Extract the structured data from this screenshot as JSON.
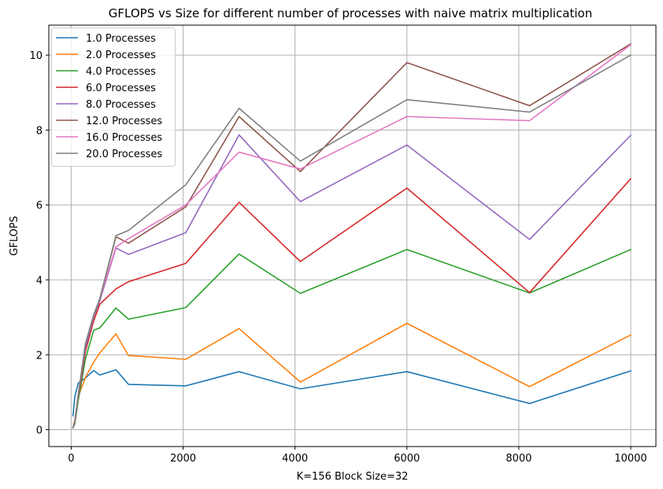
{
  "chart_data": {
    "type": "line",
    "title": "GFLOPS vs Size for different number of processes with naive matrix multiplication",
    "xlabel": "K=156 Block Size=32",
    "ylabel": "GFLOPS",
    "xlim": [
      -400,
      10450
    ],
    "ylim": [
      -0.45,
      10.8
    ],
    "xticks": [
      0,
      2000,
      4000,
      6000,
      8000,
      10000
    ],
    "yticks": [
      0,
      2,
      4,
      6,
      8,
      10
    ],
    "grid": true,
    "legend_position": "top-left",
    "x": [
      32,
      64,
      128,
      256,
      400,
      512,
      800,
      1024,
      2048,
      3000,
      4096,
      6000,
      8192,
      10000
    ],
    "series": [
      {
        "name": "1.0 Processes",
        "color": "#1f77b4",
        "values": [
          0.37,
          0.88,
          1.25,
          1.38,
          1.58,
          1.46,
          1.6,
          1.21,
          1.17,
          1.55,
          1.09,
          1.55,
          0.7,
          1.57
        ]
      },
      {
        "name": "2.0 Processes",
        "color": "#ff7f0e",
        "values": [
          0.05,
          0.25,
          0.9,
          1.4,
          1.8,
          2.05,
          2.56,
          1.98,
          1.88,
          2.7,
          1.27,
          2.84,
          1.15,
          2.53
        ]
      },
      {
        "name": "4.0 Processes",
        "color": "#2ca02c",
        "values": [
          0.05,
          0.15,
          0.8,
          1.9,
          2.65,
          2.72,
          3.25,
          2.95,
          3.26,
          4.69,
          3.64,
          4.81,
          3.65,
          4.81
        ]
      },
      {
        "name": "6.0 Processes",
        "color": "#d62728",
        "values": [
          0.05,
          0.2,
          0.9,
          2.1,
          2.9,
          3.35,
          3.76,
          3.95,
          4.44,
          6.07,
          4.49,
          6.45,
          3.66,
          6.7
        ]
      },
      {
        "name": "8.0 Processes",
        "color": "#9467bd",
        "values": [
          0.05,
          0.2,
          0.95,
          2.2,
          3.0,
          3.45,
          4.85,
          4.68,
          5.26,
          7.87,
          6.09,
          7.6,
          5.08,
          7.86
        ]
      },
      {
        "name": "12.0 Processes",
        "color": "#8c564b",
        "values": [
          0.05,
          0.2,
          0.95,
          2.3,
          3.05,
          3.5,
          5.15,
          4.98,
          5.95,
          8.36,
          6.89,
          9.8,
          8.65,
          10.3
        ]
      },
      {
        "name": "16.0 Processes",
        "color": "#e377c2",
        "values": [
          0.05,
          0.2,
          0.95,
          2.3,
          3.05,
          3.5,
          4.88,
          5.1,
          6.0,
          7.41,
          6.96,
          8.36,
          8.25,
          10.28
        ]
      },
      {
        "name": "20.0 Processes",
        "color": "#7f7f7f",
        "values": [
          0.05,
          0.2,
          0.95,
          2.3,
          3.05,
          3.5,
          5.18,
          5.32,
          6.54,
          8.58,
          7.17,
          8.81,
          8.48,
          10.0
        ]
      }
    ]
  }
}
